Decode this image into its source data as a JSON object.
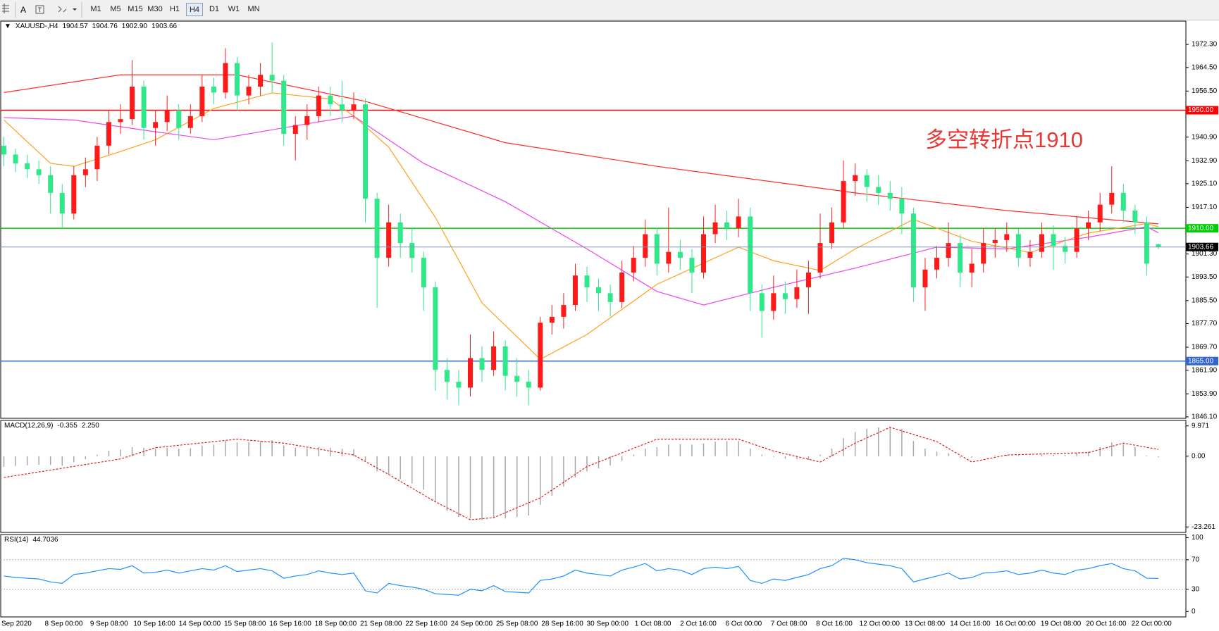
{
  "toolbar": {
    "text_tool": "A",
    "timeframes": [
      "M1",
      "M5",
      "M15",
      "M30",
      "H1",
      "H4",
      "D1",
      "W1",
      "MN"
    ],
    "active": "H4"
  },
  "annotation": "多空转折点1910",
  "time_labels": [
    "Sep 2020",
    "8 Sep 00:00",
    "9 Sep 08:00",
    "10 Sep 16:00",
    "14 Sep 00:00",
    "15 Sep 08:00",
    "16 Sep 16:00",
    "18 Sep 00:00",
    "21 Sep 08:00",
    "22 Sep 16:00",
    "24 Sep 00:00",
    "25 Sep 08:00",
    "28 Sep 16:00",
    "30 Sep 00:00",
    "1 Oct 08:00",
    "2 Oct 16:00",
    "6 Oct 00:00",
    "7 Oct 08:00",
    "8 Oct 16:00",
    "12 Oct 00:00",
    "13 Oct 08:00",
    "14 Oct 16:00",
    "16 Oct 00:00",
    "19 Oct 08:00",
    "20 Oct 16:00",
    "22 Oct 00:00"
  ],
  "chart_data": [
    {
      "type": "candlestick",
      "title": "XAUUSD-,H4",
      "header_values": [
        "1904.57",
        "1904.76",
        "1902.90",
        "1903.66"
      ],
      "up_color": "#ff1a1a",
      "down_color": "#2ee88a",
      "open": [
        1938,
        1935,
        1932,
        1930,
        1928,
        1922,
        1915,
        1928,
        1930,
        1938,
        1946,
        1947,
        1958,
        1944,
        1946,
        1950,
        1944,
        1948,
        1958,
        1956,
        1966,
        1955,
        1958,
        1962,
        1960,
        1942,
        1945,
        1948,
        1955,
        1952,
        1950,
        1952,
        1920,
        1900,
        1912,
        1905,
        1900,
        1890,
        1862,
        1858,
        1856,
        1866,
        1862,
        1870,
        1860,
        1858,
        1856,
        1878,
        1880,
        1884,
        1894,
        1890,
        1888,
        1885,
        1895,
        1900,
        1908,
        1898,
        1902,
        1900,
        1895,
        1908,
        1912,
        1910,
        1914,
        1888,
        1882,
        1888,
        1886,
        1890,
        1895,
        1905,
        1912,
        1926,
        1928,
        1924,
        1922,
        1920,
        1915,
        1890,
        1896,
        1900,
        1905,
        1895,
        1898,
        1905,
        1906,
        1908,
        1900,
        1902,
        1908,
        1904,
        1902,
        1910,
        1912,
        1918,
        1922,
        1916,
        1912,
        1904.57
      ],
      "high": [
        1941,
        1937,
        1935,
        1933,
        1931,
        1925,
        1931,
        1934,
        1941,
        1950,
        1952,
        1967,
        1960,
        1950,
        1955,
        1952,
        1952,
        1962,
        1961,
        1971,
        1968,
        1962,
        1966,
        1973,
        1962,
        1948,
        1952,
        1958,
        1958,
        1960,
        1956,
        1954,
        1922,
        1918,
        1915,
        1910,
        1902,
        1892,
        1866,
        1862,
        1874,
        1870,
        1875,
        1872,
        1866,
        1862,
        1880,
        1884,
        1888,
        1898,
        1897,
        1893,
        1891,
        1899,
        1904,
        1913,
        1910,
        1917,
        1906,
        1903,
        1914,
        1918,
        1916,
        1920,
        1917,
        1891,
        1894,
        1892,
        1896,
        1899,
        1915,
        1917,
        1933,
        1932,
        1930,
        1928,
        1926,
        1924,
        1917,
        1900,
        1904,
        1912,
        1908,
        1903,
        1910,
        1910,
        1912,
        1910,
        1906,
        1912,
        1911,
        1907,
        1914,
        1916,
        1922,
        1931,
        1925,
        1918,
        1914,
        1904.76
      ],
      "low": [
        1931,
        1929,
        1927,
        1925,
        1915,
        1910,
        1913,
        1924,
        1926,
        1935,
        1942,
        1945,
        1940,
        1938,
        1943,
        1940,
        1942,
        1946,
        1952,
        1954,
        1950,
        1952,
        1955,
        1956,
        1938,
        1933,
        1940,
        1946,
        1948,
        1946,
        1947,
        1912,
        1883,
        1897,
        1900,
        1895,
        1882,
        1855,
        1852,
        1850,
        1853,
        1858,
        1860,
        1855,
        1853,
        1850,
        1855,
        1874,
        1876,
        1882,
        1885,
        1882,
        1880,
        1883,
        1892,
        1897,
        1894,
        1895,
        1896,
        1888,
        1893,
        1905,
        1906,
        1907,
        1882,
        1873,
        1879,
        1881,
        1883,
        1881,
        1893,
        1903,
        1910,
        1921,
        1919,
        1918,
        1916,
        1908,
        1885,
        1882,
        1893,
        1897,
        1890,
        1890,
        1895,
        1900,
        1902,
        1897,
        1897,
        1900,
        1896,
        1898,
        1900,
        1906,
        1909,
        1915,
        1912,
        1908,
        1894,
        1902.9
      ],
      "close": [
        1935,
        1932,
        1930,
        1928,
        1922,
        1915,
        1928,
        1930,
        1938,
        1946,
        1947,
        1958,
        1944,
        1946,
        1950,
        1944,
        1948,
        1958,
        1956,
        1966,
        1955,
        1958,
        1962,
        1960,
        1942,
        1945,
        1948,
        1955,
        1952,
        1950,
        1952,
        1920,
        1900,
        1912,
        1905,
        1900,
        1890,
        1862,
        1858,
        1856,
        1866,
        1862,
        1870,
        1860,
        1858,
        1856,
        1878,
        1880,
        1884,
        1894,
        1890,
        1888,
        1885,
        1895,
        1900,
        1908,
        1898,
        1902,
        1900,
        1895,
        1908,
        1912,
        1910,
        1914,
        1888,
        1882,
        1888,
        1886,
        1890,
        1895,
        1905,
        1912,
        1926,
        1928,
        1924,
        1922,
        1920,
        1915,
        1890,
        1896,
        1900,
        1905,
        1895,
        1898,
        1905,
        1906,
        1908,
        1900,
        1902,
        1908,
        1904,
        1902,
        1910,
        1912,
        1918,
        1922,
        1916,
        1912,
        1898,
        1903.66
      ],
      "moving_averages": [
        {
          "color": "#ff2a2a",
          "x": [
            0,
            10,
            20,
            31,
            43,
            56,
            73,
            86,
            99
          ],
          "values": [
            1956,
            1962,
            1962,
            1953,
            1939,
            1931,
            1922,
            1916,
            1911.5
          ]
        },
        {
          "color": "#ee44ee",
          "x": [
            0,
            6,
            13,
            18,
            26,
            30,
            36,
            43,
            50,
            56,
            60,
            66,
            73,
            80,
            86,
            93,
            98,
            99
          ],
          "values": [
            1947.5,
            1946.7,
            1942.7,
            1940,
            1945.4,
            1948,
            1932,
            1919,
            1903,
            1888.6,
            1884,
            1890,
            1896.5,
            1903.6,
            1903,
            1907,
            1910.5,
            1908.5
          ]
        },
        {
          "color": "#ffa020",
          "x": [
            0,
            4,
            6,
            10,
            13,
            18,
            23,
            28,
            30,
            33,
            37,
            41,
            46,
            50,
            56,
            63,
            66,
            70,
            73,
            78,
            83,
            88,
            93,
            98,
            99
          ],
          "values": [
            1946.7,
            1932,
            1931,
            1936,
            1940,
            1950.6,
            1955.9,
            1953.8,
            1948,
            1937.5,
            1913.7,
            1884.7,
            1865.6,
            1874,
            1891,
            1903.6,
            1899,
            1895.7,
            1903,
            1913,
            1905.6,
            1901.8,
            1908.4,
            1911.6,
            1910.5
          ]
        }
      ],
      "price_lines": [
        {
          "value": 1950,
          "label": "1950.00",
          "color": "#ff0000"
        },
        {
          "value": 1910,
          "label": "1910.00",
          "color": "#00d000"
        },
        {
          "value": 1865,
          "label": "1865.00",
          "color": "#3366cc"
        }
      ],
      "current_price_color": "#7f93a8",
      "ylim": [
        1845.6,
        1980.2
      ],
      "yticks": [
        {
          "value": 1972.3,
          "label": "1972.30"
        },
        {
          "value": 1964.5,
          "label": "1964.50"
        },
        {
          "value": 1956.5,
          "label": "1956.50"
        },
        {
          "value": 1940.9,
          "label": "1940.90"
        },
        {
          "value": 1932.9,
          "label": "1932.90"
        },
        {
          "value": 1925.1,
          "label": "1925.10"
        },
        {
          "value": 1917.1,
          "label": "1917.10"
        },
        {
          "value": 1901.3,
          "label": "1901.30"
        },
        {
          "value": 1893.5,
          "label": "1893.50"
        },
        {
          "value": 1885.5,
          "label": "1885.50"
        },
        {
          "value": 1877.7,
          "label": "1877.70"
        },
        {
          "value": 1869.7,
          "label": "1869.70"
        },
        {
          "value": 1861.9,
          "label": "1861.90"
        },
        {
          "value": 1853.9,
          "label": "1853.90"
        },
        {
          "value": 1846.1,
          "label": "1846.10"
        }
      ]
    },
    {
      "type": "macd",
      "title": "MACD(12,26,9)",
      "header_values": [
        "-0.355",
        "2.250"
      ],
      "color": "#a8a8a8",
      "values": [
        -3.5,
        -3.2,
        -3,
        -2.8,
        -2.9,
        -3.1,
        -2,
        -1,
        0.5,
        1.8,
        2.2,
        3,
        2.8,
        2.6,
        2.8,
        2.5,
        2.6,
        3.5,
        3.8,
        5,
        4.5,
        4.6,
        5,
        5.2,
        3.5,
        2.8,
        2.6,
        3,
        2.8,
        2.5,
        2.3,
        -1.5,
        -5,
        -6,
        -7.5,
        -9,
        -11,
        -15,
        -18,
        -20,
        -20.5,
        -21,
        -20,
        -20.5,
        -20,
        -19.5,
        -16,
        -13,
        -10,
        -7,
        -5,
        -4,
        -3,
        -1.5,
        0.5,
        2.5,
        3,
        3.8,
        4,
        3.8,
        4.2,
        4.8,
        5,
        5,
        2.5,
        0.5,
        -0.2,
        -0.8,
        -1,
        -1.2,
        0.5,
        2.5,
        6,
        8,
        9,
        9.5,
        9.6,
        9,
        5,
        2.5,
        1.5,
        1,
        -0.5,
        -0.5,
        0,
        0.3,
        0.5,
        0.2,
        0.1,
        0.6,
        0.5,
        0.4,
        1,
        1.5,
        3,
        4.5,
        4,
        3,
        0.2,
        -0.355
      ],
      "signal": {
        "color": "#e02020",
        "x": [
          0,
          10,
          13,
          20,
          24,
          30,
          33,
          37,
          40,
          42,
          46,
          50,
          56,
          63,
          66,
          70,
          73,
          76,
          80,
          83,
          86,
          93,
          96,
          99
        ],
        "values": [
          -7,
          -0.9,
          2.8,
          5.6,
          4.3,
          0.4,
          -6,
          -15,
          -20.9,
          -20.2,
          -13.7,
          -3.4,
          5.6,
          5.6,
          1.7,
          -1.9,
          4.3,
          9.5,
          4.8,
          -1.9,
          0.4,
          1.2,
          4.3,
          2.25
        ]
      },
      "ylim": [
        -25.06,
        11.77
      ],
      "yticks": [
        9.971,
        {
          "value": 0,
          "label": "0.00"
        },
        -23.261
      ]
    },
    {
      "type": "rsi",
      "title": "RSI(14)",
      "header_values": [
        "44.7036"
      ],
      "color": "#1e90ff",
      "values": [
        48,
        46,
        45,
        44,
        40,
        38,
        50,
        52,
        55,
        58,
        57,
        62,
        52,
        53,
        56,
        52,
        55,
        58,
        56,
        62,
        54,
        56,
        58,
        55,
        45,
        48,
        50,
        55,
        52,
        50,
        52,
        28,
        25,
        38,
        35,
        33,
        30,
        24,
        23,
        22,
        30,
        28,
        35,
        27,
        26,
        25,
        42,
        44,
        48,
        56,
        52,
        50,
        48,
        56,
        60,
        65,
        55,
        58,
        56,
        50,
        58,
        60,
        58,
        61,
        42,
        38,
        44,
        42,
        46,
        50,
        58,
        62,
        72,
        70,
        66,
        64,
        62,
        58,
        40,
        44,
        48,
        52,
        44,
        46,
        52,
        53,
        55,
        50,
        52,
        56,
        52,
        50,
        56,
        58,
        62,
        65,
        58,
        55,
        45,
        44.7036
      ],
      "levels": [
        70,
        30
      ],
      "ylim": [
        -7.4,
        104.2
      ],
      "yticks": [
        100,
        70,
        30,
        0
      ]
    }
  ]
}
